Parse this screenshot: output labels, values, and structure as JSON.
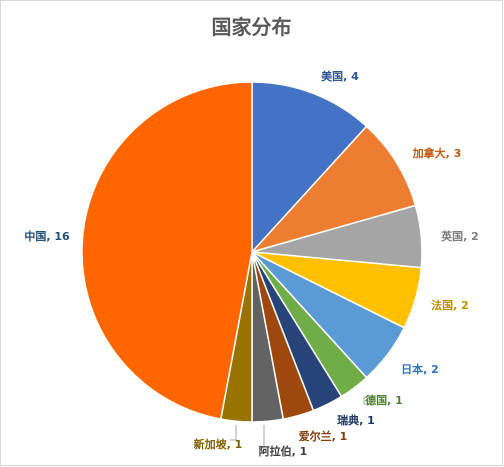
{
  "chart_data": {
    "type": "pie",
    "title": "国家分布",
    "slices": [
      {
        "label": "美国",
        "value": 4,
        "display": "美国, 4",
        "color": "#4472C4",
        "label_color": "#2F5597"
      },
      {
        "label": "加拿大",
        "value": 3,
        "display": "加拿大, 3",
        "color": "#ED7D31",
        "label_color": "#C55A11"
      },
      {
        "label": "英国",
        "value": 2,
        "display": "英国, 2",
        "color": "#A5A5A5",
        "label_color": "#7F7F7F"
      },
      {
        "label": "法国",
        "value": 2,
        "display": "法国, 2",
        "color": "#FFC000",
        "label_color": "#BF9000"
      },
      {
        "label": "日本",
        "value": 2,
        "display": "日本, 2",
        "color": "#5B9BD5",
        "label_color": "#2E75B6"
      },
      {
        "label": "德国",
        "value": 1,
        "display": "德国, 1",
        "color": "#70AD47",
        "label_color": "#548235"
      },
      {
        "label": "瑞典",
        "value": 1,
        "display": "瑞典, 1",
        "color": "#264478",
        "label_color": "#1F3864"
      },
      {
        "label": "爱尔兰",
        "value": 1,
        "display": "爱尔兰, 1",
        "color": "#9E480E",
        "label_color": "#843C0C"
      },
      {
        "label": "阿拉伯",
        "value": 1,
        "display": "阿拉伯, 1",
        "color": "#636363",
        "label_color": "#404040"
      },
      {
        "label": "新加坡",
        "value": 1,
        "display": "新加坡, 1",
        "color": "#997300",
        "label_color": "#7F6000"
      },
      {
        "label": "中国",
        "value": 16,
        "display": "中国, 16",
        "color": "#FF6600",
        "label_color": "#1F4E79"
      }
    ],
    "start": "top",
    "direction": "clockwise",
    "legend": "none"
  }
}
